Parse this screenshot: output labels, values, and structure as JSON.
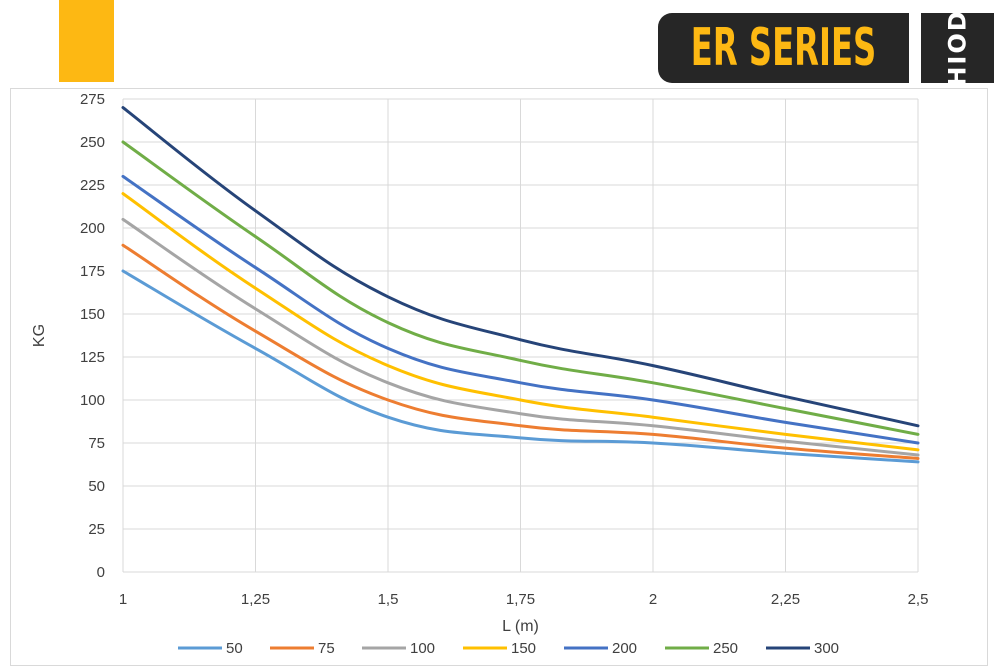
{
  "brand": {
    "series_label": "ER SERIES",
    "logo_label": "HIOD",
    "accent_color": "#FDB813",
    "badge_color": "#262626"
  },
  "chart_data": {
    "type": "line",
    "title": "",
    "xlabel": "L (m)",
    "ylabel": "KG",
    "xlim": [
      1,
      2.5
    ],
    "ylim": [
      0,
      275
    ],
    "x_ticks": [
      "1",
      "1,25",
      "1,5",
      "1,75",
      "2",
      "2,25",
      "2,5"
    ],
    "y_ticks": [
      "0",
      "25",
      "50",
      "75",
      "100",
      "125",
      "150",
      "175",
      "200",
      "225",
      "250",
      "275"
    ],
    "x": [
      1,
      1.25,
      1.5,
      1.75,
      2,
      2.25,
      2.5
    ],
    "grid": true,
    "legend_position": "bottom",
    "series": [
      {
        "name": "50",
        "color": "#5B9BD5",
        "values": [
          175,
          130,
          90,
          78,
          75,
          69,
          64
        ]
      },
      {
        "name": "75",
        "color": "#ED7D31",
        "values": [
          190,
          140,
          100,
          85,
          80,
          72,
          66
        ]
      },
      {
        "name": "100",
        "color": "#A5A5A5",
        "values": [
          205,
          153,
          110,
          92,
          85,
          76,
          68
        ]
      },
      {
        "name": "150",
        "color": "#FFC000",
        "values": [
          220,
          165,
          120,
          100,
          90,
          80,
          71
        ]
      },
      {
        "name": "200",
        "color": "#4472C4",
        "values": [
          230,
          177,
          130,
          110,
          100,
          87,
          75
        ]
      },
      {
        "name": "250",
        "color": "#70AD47",
        "values": [
          250,
          195,
          145,
          123,
          110,
          95,
          80
        ]
      },
      {
        "name": "300",
        "color": "#264478",
        "values": [
          270,
          210,
          160,
          135,
          120,
          102,
          85
        ]
      }
    ]
  }
}
